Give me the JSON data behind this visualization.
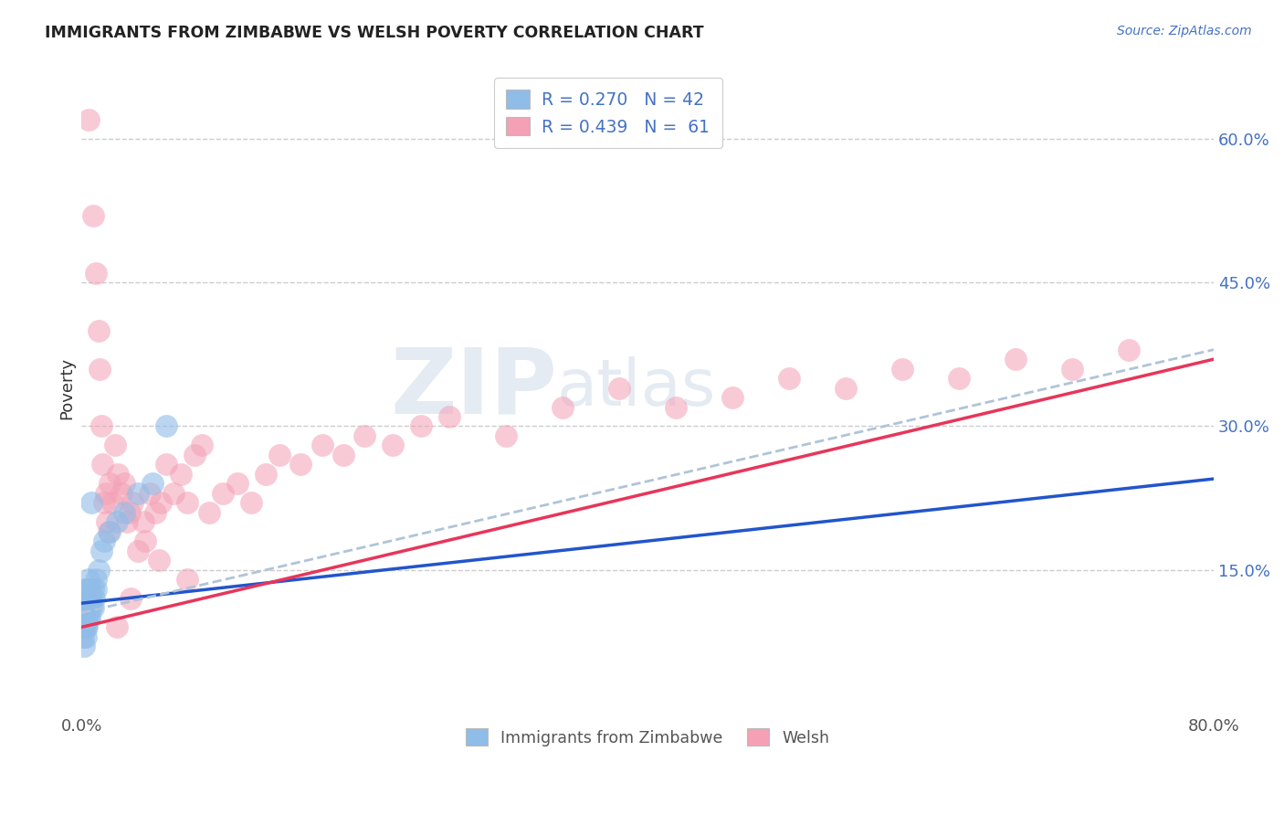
{
  "title": "IMMIGRANTS FROM ZIMBABWE VS WELSH POVERTY CORRELATION CHART",
  "source": "Source: ZipAtlas.com",
  "ylabel": "Poverty",
  "xlim": [
    0.0,
    0.8
  ],
  "ylim": [
    0.0,
    0.68
  ],
  "xticks": [
    0.0,
    0.2,
    0.4,
    0.6,
    0.8
  ],
  "xtick_labels": [
    "0.0%",
    "",
    "",
    "",
    "80.0%"
  ],
  "ytick_values_right": [
    0.6,
    0.45,
    0.3,
    0.15
  ],
  "ytick_labels_right": [
    "60.0%",
    "45.0%",
    "30.0%",
    "15.0%"
  ],
  "grid_color": "#cccccc",
  "background_color": "#ffffff",
  "blue_color": "#90bce8",
  "pink_color": "#f4a0b5",
  "blue_line_color": "#2255cc",
  "pink_line_color": "#e8355a",
  "dashed_line_color": "#b0c4d8",
  "watermark_color": "#ccd8e8",
  "blue_line": {
    "x0": 0.0,
    "y0": 0.115,
    "x1": 0.8,
    "y1": 0.245
  },
  "pink_line": {
    "x0": 0.0,
    "y0": 0.09,
    "x1": 0.8,
    "y1": 0.37
  },
  "dash_line": {
    "x0": 0.0,
    "y0": 0.105,
    "x1": 0.8,
    "y1": 0.38
  },
  "blue_x": [
    0.001,
    0.001,
    0.001,
    0.002,
    0.002,
    0.002,
    0.002,
    0.002,
    0.003,
    0.003,
    0.003,
    0.003,
    0.003,
    0.004,
    0.004,
    0.004,
    0.004,
    0.005,
    0.005,
    0.005,
    0.005,
    0.006,
    0.006,
    0.006,
    0.006,
    0.007,
    0.007,
    0.007,
    0.008,
    0.008,
    0.009,
    0.01,
    0.01,
    0.012,
    0.014,
    0.016,
    0.02,
    0.025,
    0.03,
    0.04,
    0.05,
    0.06
  ],
  "blue_y": [
    0.08,
    0.09,
    0.1,
    0.07,
    0.09,
    0.1,
    0.11,
    0.13,
    0.08,
    0.09,
    0.1,
    0.11,
    0.12,
    0.09,
    0.1,
    0.12,
    0.13,
    0.1,
    0.11,
    0.12,
    0.14,
    0.1,
    0.11,
    0.12,
    0.13,
    0.11,
    0.12,
    0.22,
    0.11,
    0.13,
    0.12,
    0.13,
    0.14,
    0.15,
    0.17,
    0.18,
    0.19,
    0.2,
    0.21,
    0.23,
    0.24,
    0.3
  ],
  "pink_x": [
    0.005,
    0.008,
    0.01,
    0.012,
    0.013,
    0.014,
    0.015,
    0.016,
    0.017,
    0.018,
    0.019,
    0.02,
    0.022,
    0.024,
    0.026,
    0.028,
    0.03,
    0.032,
    0.034,
    0.036,
    0.04,
    0.044,
    0.048,
    0.052,
    0.056,
    0.06,
    0.065,
    0.07,
    0.075,
    0.08,
    0.09,
    0.1,
    0.11,
    0.12,
    0.13,
    0.14,
    0.155,
    0.17,
    0.185,
    0.2,
    0.22,
    0.24,
    0.26,
    0.3,
    0.34,
    0.38,
    0.42,
    0.46,
    0.5,
    0.54,
    0.58,
    0.62,
    0.66,
    0.7,
    0.74,
    0.075,
    0.055,
    0.085,
    0.045,
    0.035,
    0.025
  ],
  "pink_y": [
    0.62,
    0.52,
    0.46,
    0.4,
    0.36,
    0.3,
    0.26,
    0.22,
    0.23,
    0.2,
    0.19,
    0.24,
    0.22,
    0.28,
    0.25,
    0.23,
    0.24,
    0.2,
    0.21,
    0.22,
    0.17,
    0.2,
    0.23,
    0.21,
    0.22,
    0.26,
    0.23,
    0.25,
    0.22,
    0.27,
    0.21,
    0.23,
    0.24,
    0.22,
    0.25,
    0.27,
    0.26,
    0.28,
    0.27,
    0.29,
    0.28,
    0.3,
    0.31,
    0.29,
    0.32,
    0.34,
    0.32,
    0.33,
    0.35,
    0.34,
    0.36,
    0.35,
    0.37,
    0.36,
    0.38,
    0.14,
    0.16,
    0.28,
    0.18,
    0.12,
    0.09
  ]
}
